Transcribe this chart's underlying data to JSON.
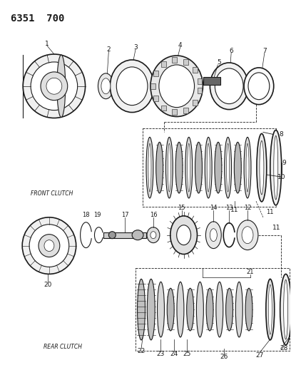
{
  "title": "6351  700",
  "bg_color": "#ffffff",
  "lc": "#1a1a1a",
  "front_clutch_label": "FRONT CLUTCH",
  "rear_clutch_label": "REAR CLUTCH",
  "figw": 4.08,
  "figh": 5.33,
  "dpi": 100
}
